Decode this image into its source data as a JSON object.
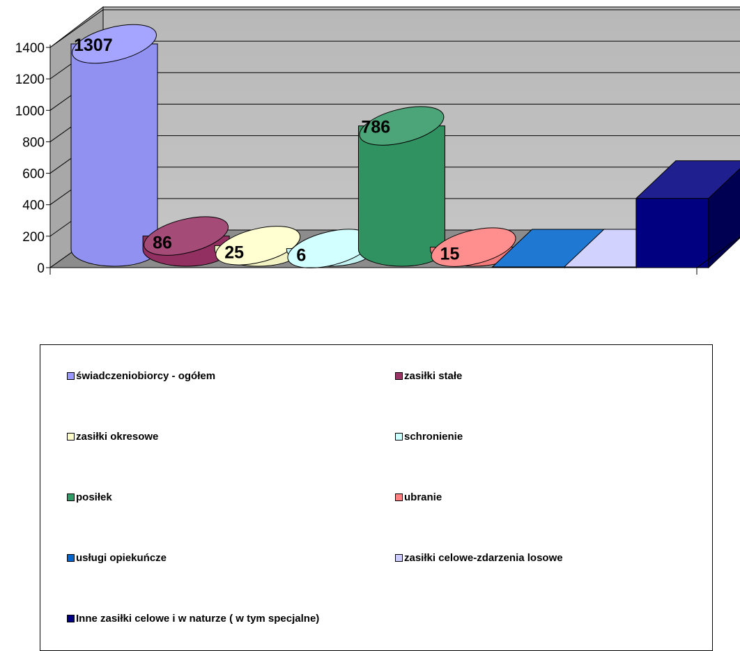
{
  "chart_data": {
    "type": "bar",
    "style": "3d-cylinder",
    "ylim": [
      0,
      1400
    ],
    "yticks": [
      "0",
      "200",
      "400",
      "600",
      "800",
      "1000",
      "1200",
      "1400"
    ],
    "grid": true,
    "legend_position": "bottom",
    "series": [
      {
        "name": "świadczeniobiorcy -  ogółem",
        "value": 1307,
        "label": "1307",
        "color": "#9999ff",
        "shape": "cylinder"
      },
      {
        "name": "zasiłki stałe",
        "value": 86,
        "label": "86",
        "color": "#993366",
        "shape": "cylinder"
      },
      {
        "name": "zasiłki okresowe",
        "value": 25,
        "label": "25",
        "color": "#ffffcc",
        "shape": "cylinder"
      },
      {
        "name": "schronienie",
        "value": 6,
        "label": "6",
        "color": "#ccffff",
        "shape": "cylinder"
      },
      {
        "name": "posiłek",
        "value": 786,
        "label": "786",
        "color": "#339966",
        "shape": "cylinder"
      },
      {
        "name": "ubranie",
        "value": 15,
        "label": "15",
        "color": "#ff8080",
        "shape": "cylinder"
      },
      {
        "name": "usługi opiekuńcze",
        "value": 0,
        "label": "",
        "color": "#0066cc",
        "shape": "box"
      },
      {
        "name": "zasiłki celowe-zdarzenia losowe",
        "value": 0,
        "label": "",
        "color": "#ccccff",
        "shape": "box"
      },
      {
        "name": "Inne zasiłki celowe i w naturze ( w tym specjalne)",
        "value": 440,
        "label": "",
        "color": "#000080",
        "shape": "box"
      }
    ]
  }
}
